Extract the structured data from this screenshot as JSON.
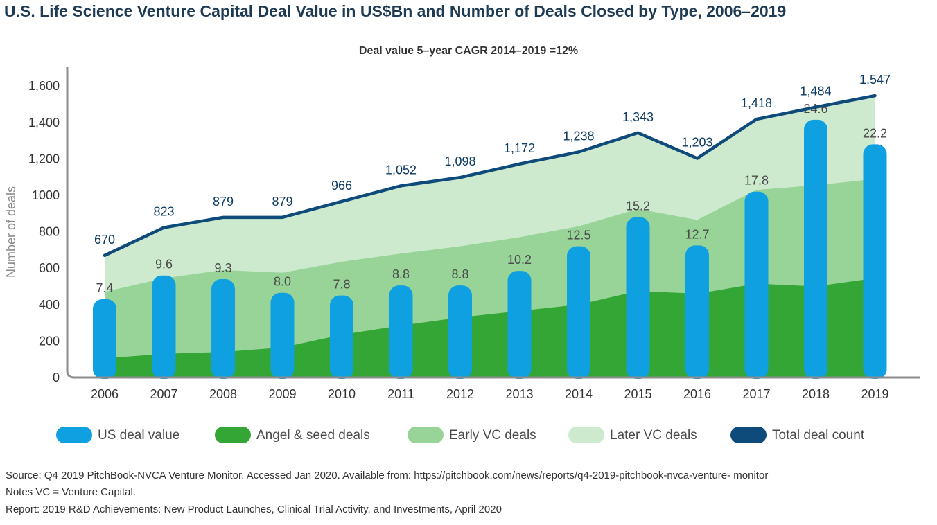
{
  "title": "U.S. Life Science Venture Capital Deal Value in US$Bn and Number of Deals Closed by Type, 2006–2019",
  "footer": {
    "source": "Source: Q4 2019 PitchBook-NVCA Venture Monitor. Accessed Jan 2020. Available from: https://pitchbook.com/news/reports/q4-2019-pitchbook-nvca-venture- monitor",
    "notes": "Notes VC = Venture Capital.",
    "report": "Report: 2019 R&D Achievements: New Product Launches, Clinical Trial Activity, and Investments, April 2020"
  },
  "colors": {
    "deal_value": "#0ea0e0",
    "angel_seed": "#34a636",
    "early_vc": "#98d498",
    "later_vc": "#cdeacf",
    "total": "#0e4a7a",
    "axis": "#8c8c8c"
  },
  "chart_data": {
    "type": "bar",
    "title": "Deal value 5–year CAGR 2014–2019 =12%",
    "ylabel": "Number of deals",
    "xlabel": "",
    "ylim": [
      0,
      1700
    ],
    "yticks": [
      {
        "value": 0,
        "label": "0"
      },
      {
        "value": 200,
        "label": "200"
      },
      {
        "value": 400,
        "label": "400"
      },
      {
        "value": 600,
        "label": "600"
      },
      {
        "value": 800,
        "label": "800"
      },
      {
        "value": 1000,
        "label": "1000"
      },
      {
        "value": 1200,
        "label": "1,200"
      },
      {
        "value": 1400,
        "label": "1,400"
      },
      {
        "value": 1600,
        "label": "1,600"
      }
    ],
    "categories": [
      "2006",
      "2007",
      "2008",
      "2009",
      "2010",
      "2011",
      "2012",
      "2013",
      "2014",
      "2015",
      "2016",
      "2017",
      "2018",
      "2019"
    ],
    "series": [
      {
        "name": "US deal value",
        "kind": "bar",
        "bar_heights": [
          430,
          560,
          540,
          465,
          450,
          505,
          505,
          585,
          720,
          880,
          725,
          1020,
          1415,
          1280
        ],
        "labels": [
          "7.4",
          "9.6",
          "9.3",
          "8.0",
          "7.8",
          "8.8",
          "8.8",
          "10.2",
          "12.5",
          "15.2",
          "12.7",
          "17.8",
          "24.6",
          "22.2"
        ]
      },
      {
        "name": "Angel & seed deals",
        "kind": "stacked-area",
        "values": [
          105,
          130,
          140,
          165,
          235,
          285,
          330,
          365,
          400,
          475,
          460,
          515,
          500,
          545
        ]
      },
      {
        "name": "Early VC deals",
        "kind": "stacked-area",
        "values": [
          470,
          545,
          590,
          575,
          635,
          680,
          720,
          770,
          830,
          925,
          865,
          1030,
          1055,
          1090
        ]
      },
      {
        "name": "Later VC deals",
        "kind": "stacked-area",
        "values": [
          670,
          823,
          879,
          879,
          966,
          1052,
          1098,
          1172,
          1238,
          1343,
          1203,
          1418,
          1484,
          1547
        ]
      },
      {
        "name": "Total deal count",
        "kind": "line",
        "values": [
          670,
          823,
          879,
          879,
          966,
          1052,
          1098,
          1172,
          1238,
          1343,
          1203,
          1418,
          1484,
          1547
        ],
        "labels": [
          "670",
          "823",
          "879",
          "879",
          "966",
          "1,052",
          "1,098",
          "1,172",
          "1,238",
          "1,343",
          "1,203",
          "1,418",
          "1,484",
          "1,547"
        ]
      }
    ],
    "legend": {
      "position": "bottom",
      "items": [
        "US deal value",
        "Angel & seed deals",
        "Early VC deals",
        "Later VC deals",
        "Total deal count"
      ]
    }
  }
}
